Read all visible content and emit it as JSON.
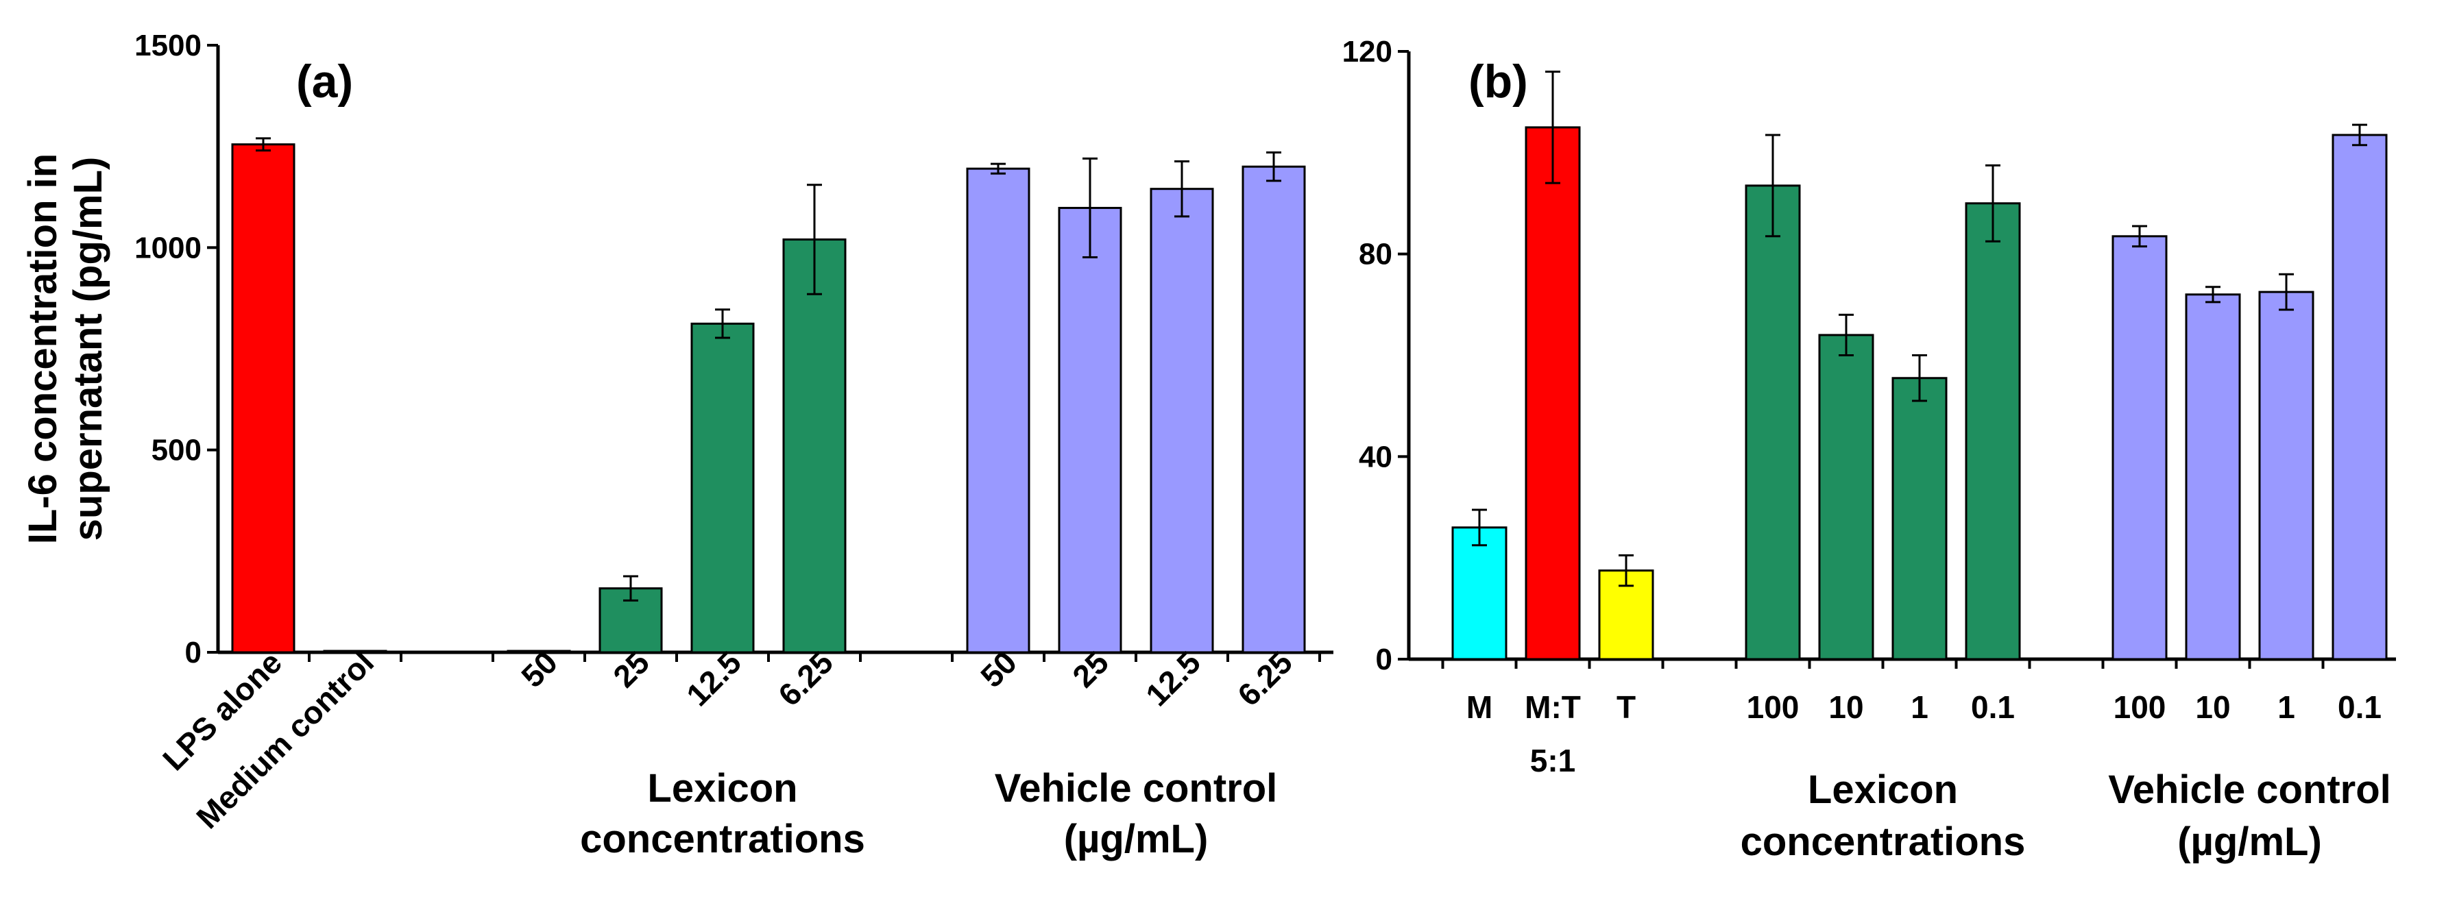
{
  "chart_data": [
    {
      "type": "bar",
      "panel_label": "(a)",
      "ylabel": "IL-6 concentration in supernatant (pg/mL)",
      "ylabel_lines": [
        "IL-6 concentration in",
        "supernatant (pg/mL)"
      ],
      "ylim": [
        0,
        1500
      ],
      "yticks": [
        0,
        500,
        1000,
        1500
      ],
      "grid": false,
      "categories": [
        "LPS alone",
        "Medium control",
        "",
        "50",
        "25",
        "12.5",
        "6.25",
        "",
        "50",
        "25",
        "12.5",
        "6.25"
      ],
      "values": [
        1255,
        3,
        null,
        3,
        158,
        812,
        1020,
        null,
        1195,
        1098,
        1145,
        1200
      ],
      "errors": [
        15,
        0,
        null,
        0,
        30,
        35,
        135,
        null,
        12,
        122,
        68,
        35
      ],
      "colors": [
        "#ff0000",
        "#1f8f5f",
        null,
        "#1f8f5f",
        "#1f8f5f",
        "#1f8f5f",
        "#1f8f5f",
        null,
        "#9999ff",
        "#9999ff",
        "#9999ff",
        "#9999ff"
      ],
      "group_labels": [
        {
          "lines": [
            "Lexicon",
            "concentrations"
          ],
          "categories": [
            4,
            6
          ]
        },
        {
          "lines": [
            "Vehicle control",
            "(µg/mL)"
          ],
          "categories": [
            8,
            11
          ]
        }
      ]
    },
    {
      "type": "bar",
      "panel_label": "(b)",
      "ylabel": "",
      "ylim": [
        0,
        120
      ],
      "yticks": [
        0,
        40,
        80,
        120
      ],
      "grid": false,
      "categories": [
        "M",
        "M:T",
        "T",
        "",
        "100",
        "10",
        "1",
        "0.1",
        "",
        "100",
        "10",
        "1",
        "0.1"
      ],
      "category_sublabels": {
        "1": "5:1"
      },
      "values": [
        26,
        105,
        17.5,
        null,
        93.5,
        64,
        55.5,
        90,
        null,
        83.5,
        72,
        72.5,
        103.5
      ],
      "errors": [
        3.5,
        11,
        3,
        null,
        10,
        4,
        4.5,
        7.5,
        null,
        2,
        1.5,
        3.5,
        2
      ],
      "colors": [
        "#00ffff",
        "#ff0000",
        "#ffff00",
        null,
        "#1f8f5f",
        "#1f8f5f",
        "#1f8f5f",
        "#1f8f5f",
        null,
        "#9999ff",
        "#9999ff",
        "#9999ff",
        "#9999ff"
      ],
      "group_labels": [
        {
          "lines": [
            "Lexicon",
            "concentrations"
          ],
          "categories": [
            4,
            7
          ]
        },
        {
          "lines": [
            "Vehicle control",
            "(µg/mL)"
          ],
          "categories": [
            9,
            12
          ]
        }
      ]
    }
  ]
}
